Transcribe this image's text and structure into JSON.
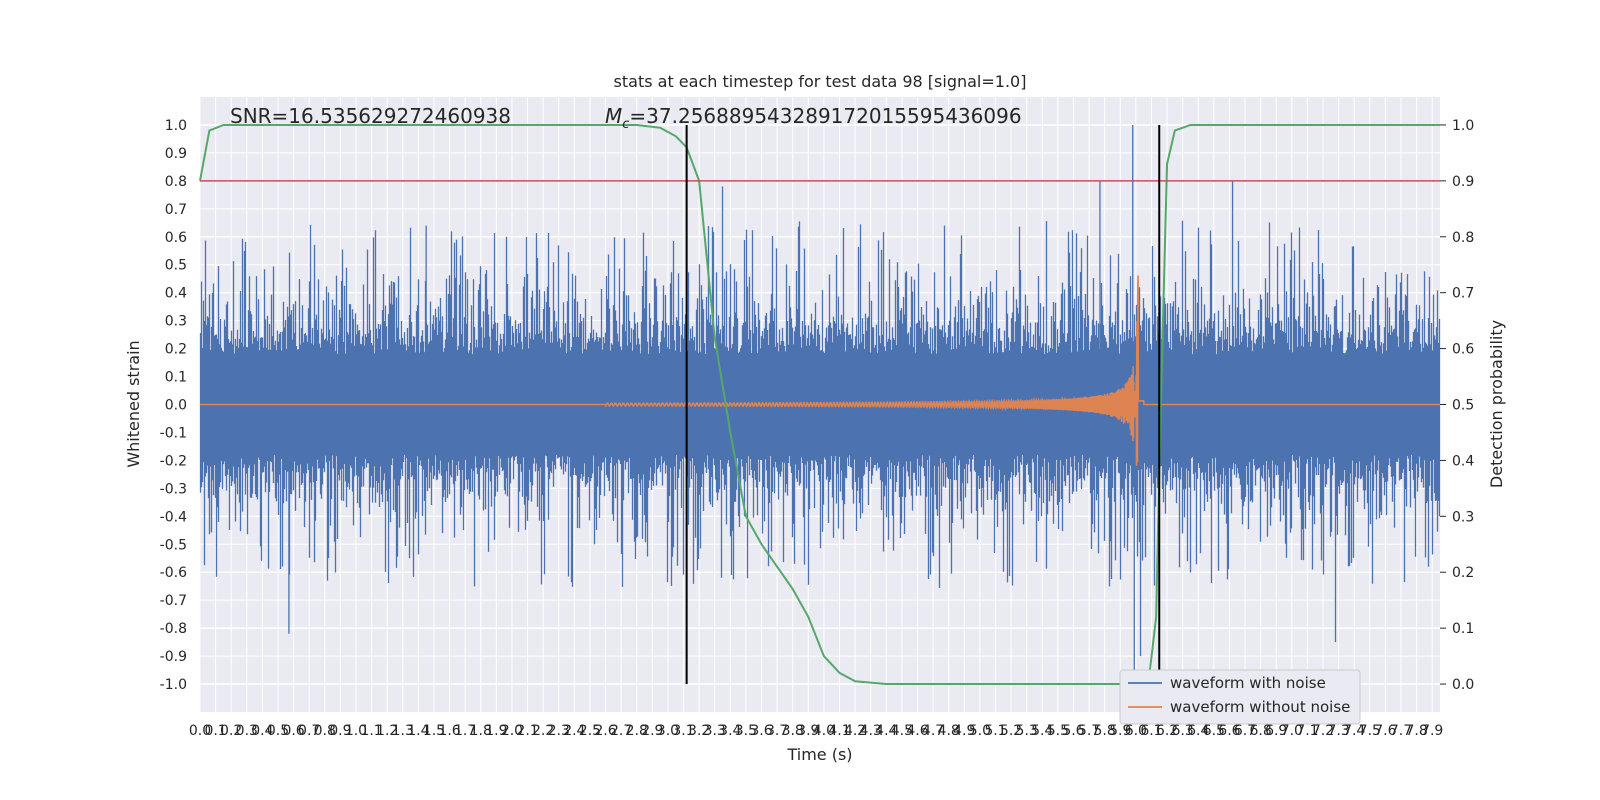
{
  "chart_data": {
    "type": "line",
    "title": "stats at each timestep for test data 98 [signal=1.0]",
    "xlabel": "Time (s)",
    "ylabel": "Whitened strain",
    "y2label": "Detection probability",
    "xlim": [
      0.0,
      7.95
    ],
    "ylim": [
      -1.1,
      1.1
    ],
    "y2lim": [
      -0.05,
      1.05
    ],
    "grid": true,
    "legend_position": "lower-right",
    "annotations": {
      "snr": "SNR=16.535629272460938",
      "mc_symbol": "M",
      "mc_sub": "c",
      "mc_value": "=37.256889543289172015595436096"
    },
    "threshold_y2": 0.9,
    "vertical_lines_x": [
      3.12,
      6.15
    ],
    "xticks": [
      "0.0",
      "0.1",
      "0.2",
      "0.3",
      "0.4",
      "0.5",
      "0.6",
      "0.7",
      "0.8",
      "0.9",
      "1.0",
      "1.1",
      "1.2",
      "1.3",
      "1.4",
      "1.5",
      "1.6",
      "1.7",
      "1.8",
      "1.9",
      "2.0",
      "2.1",
      "2.2",
      "2.3",
      "2.4",
      "2.5",
      "2.6",
      "2.7",
      "2.8",
      "2.9",
      "3.0",
      "3.1",
      "3.2",
      "3.3",
      "3.4",
      "3.5",
      "3.6",
      "3.7",
      "3.8",
      "3.9",
      "4.0",
      "4.1",
      "4.2",
      "4.3",
      "4.4",
      "4.5",
      "4.6",
      "4.7",
      "4.8",
      "4.9",
      "5.0",
      "5.1",
      "5.2",
      "5.3",
      "5.4",
      "5.5",
      "5.6",
      "5.7",
      "5.8",
      "5.9",
      "6.0",
      "6.1",
      "6.2",
      "6.3",
      "6.4",
      "6.5",
      "6.6",
      "6.7",
      "6.8",
      "6.9",
      "7.0",
      "7.1",
      "7.2",
      "7.3",
      "7.4",
      "7.5",
      "7.6",
      "7.7",
      "7.8",
      "7.9"
    ],
    "yticks": [
      "1.0",
      "0.9",
      "0.8",
      "0.7",
      "0.6",
      "0.5",
      "0.4",
      "0.3",
      "0.2",
      "0.1",
      "0.0",
      "-0.1",
      "-0.2",
      "-0.3",
      "-0.4",
      "-0.5",
      "-0.6",
      "-0.7",
      "-0.8",
      "-0.9",
      "-1.0"
    ],
    "y2ticks": [
      "1.0",
      "0.9",
      "0.8",
      "0.7",
      "0.6",
      "0.5",
      "0.4",
      "0.3",
      "0.2",
      "0.1",
      "0.0"
    ],
    "series": [
      {
        "name": "waveform with noise",
        "color": "#4c72b0",
        "style": "dense noise, amplitude about 0.3, peaks to about 0.65 (spike 1.0 near 5.98 s)"
      },
      {
        "name": "waveform without noise",
        "color": "#dd8452",
        "style": "chirp growing from 0 at 3.0 s to peak 0.8 at 6.0 s, merger near 6.0 s"
      }
    ],
    "detection_probability": {
      "color": "#55a868",
      "x": [
        0.0,
        0.06,
        0.15,
        0.5,
        1.0,
        2.0,
        2.8,
        2.95,
        3.05,
        3.12,
        3.2,
        3.3,
        3.4,
        3.5,
        3.6,
        3.7,
        3.8,
        3.9,
        4.0,
        4.1,
        4.2,
        4.4,
        5.0,
        6.0,
        6.08,
        6.13,
        6.16,
        6.2,
        6.25,
        6.35,
        7.95
      ],
      "y": [
        0.9,
        0.99,
        1.0,
        1.0,
        1.0,
        1.0,
        1.0,
        0.995,
        0.98,
        0.96,
        0.9,
        0.62,
        0.45,
        0.3,
        0.25,
        0.21,
        0.17,
        0.12,
        0.05,
        0.02,
        0.005,
        0.0,
        0.0,
        0.0,
        0.0,
        0.12,
        0.5,
        0.93,
        0.99,
        1.0,
        1.0
      ]
    }
  }
}
